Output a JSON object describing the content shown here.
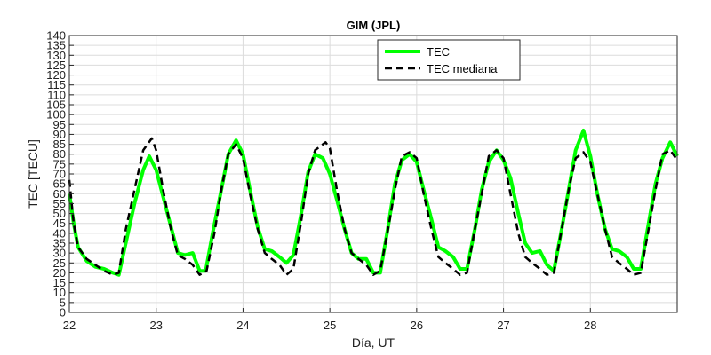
{
  "chart_data": {
    "type": "line",
    "title": "GIM (JPL)",
    "xlabel": "Día, UT",
    "ylabel": "TEC [TECU]",
    "xlim": [
      22,
      29
    ],
    "ylim": [
      0,
      140
    ],
    "xticks": [
      22,
      23,
      24,
      25,
      26,
      27,
      28
    ],
    "yticks": [
      0,
      5,
      10,
      15,
      20,
      25,
      30,
      35,
      40,
      45,
      50,
      55,
      60,
      65,
      70,
      75,
      80,
      85,
      90,
      95,
      100,
      105,
      110,
      115,
      120,
      125,
      130,
      135,
      140
    ],
    "grid": true,
    "legend_position": "top-right",
    "series": [
      {
        "name": "TEC",
        "color": "#00ff00",
        "style": "solid",
        "x": [
          22.0,
          22.05,
          22.1,
          22.2,
          22.3,
          22.4,
          22.5,
          22.57,
          22.65,
          22.75,
          22.85,
          22.92,
          23.0,
          23.1,
          23.25,
          23.33,
          23.42,
          23.5,
          23.57,
          23.65,
          23.75,
          23.83,
          23.92,
          24.0,
          24.08,
          24.17,
          24.25,
          24.33,
          24.42,
          24.5,
          24.58,
          24.67,
          24.75,
          24.83,
          24.92,
          25.0,
          25.08,
          25.17,
          25.25,
          25.33,
          25.42,
          25.5,
          25.58,
          25.67,
          25.75,
          25.83,
          25.92,
          26.0,
          26.08,
          26.17,
          26.25,
          26.33,
          26.42,
          26.5,
          26.58,
          26.67,
          26.75,
          26.83,
          26.92,
          27.0,
          27.08,
          27.17,
          27.25,
          27.33,
          27.42,
          27.5,
          27.58,
          27.67,
          27.75,
          27.83,
          27.92,
          28.0,
          28.08,
          28.17,
          28.25,
          28.33,
          28.42,
          28.5,
          28.58,
          28.67,
          28.75,
          28.83,
          28.92,
          29.0
        ],
        "y": [
          60,
          45,
          33,
          26,
          23,
          22,
          20,
          19,
          35,
          55,
          72,
          79,
          72,
          55,
          30,
          29,
          30,
          21,
          21,
          40,
          62,
          80,
          87,
          80,
          62,
          43,
          32,
          31,
          28,
          25,
          29,
          50,
          71,
          80,
          78,
          70,
          57,
          42,
          30,
          27,
          27,
          20,
          20,
          43,
          65,
          77,
          80,
          76,
          62,
          47,
          33,
          31,
          28,
          22,
          22,
          42,
          62,
          76,
          82,
          77,
          68,
          50,
          35,
          30,
          31,
          24,
          21,
          42,
          62,
          82,
          92,
          79,
          60,
          42,
          32,
          31,
          28,
          22,
          22,
          45,
          65,
          78,
          86,
          79
        ]
      },
      {
        "name": "TEC mediana",
        "color": "#000000",
        "style": "dashed",
        "x": [
          22.0,
          22.05,
          22.1,
          22.2,
          22.3,
          22.4,
          22.5,
          22.57,
          22.65,
          22.75,
          22.85,
          22.95,
          23.0,
          23.08,
          23.17,
          23.25,
          23.33,
          23.42,
          23.5,
          23.58,
          23.67,
          23.75,
          23.83,
          23.92,
          24.0,
          24.08,
          24.17,
          24.25,
          24.33,
          24.42,
          24.5,
          24.58,
          24.67,
          24.75,
          24.83,
          24.95,
          25.0,
          25.08,
          25.17,
          25.25,
          25.33,
          25.42,
          25.5,
          25.58,
          25.67,
          25.75,
          25.83,
          25.92,
          26.0,
          26.08,
          26.17,
          26.25,
          26.33,
          26.42,
          26.5,
          26.58,
          26.67,
          26.75,
          26.83,
          26.92,
          27.0,
          27.08,
          27.17,
          27.25,
          27.33,
          27.42,
          27.5,
          27.58,
          27.67,
          27.75,
          27.83,
          27.92,
          28.0,
          28.08,
          28.17,
          28.25,
          28.33,
          28.42,
          28.5,
          28.58,
          28.67,
          28.75,
          28.83,
          28.92,
          29.0
        ],
        "y": [
          67,
          45,
          33,
          27,
          24,
          21,
          19,
          20,
          42,
          62,
          82,
          88,
          82,
          62,
          42,
          29,
          27,
          24,
          19,
          21,
          40,
          62,
          80,
          85,
          78,
          60,
          42,
          30,
          27,
          24,
          19,
          22,
          46,
          70,
          82,
          86,
          83,
          62,
          42,
          30,
          27,
          24,
          19,
          21,
          42,
          62,
          79,
          81,
          78,
          60,
          42,
          28,
          25,
          22,
          19,
          20,
          42,
          60,
          79,
          82,
          78,
          60,
          40,
          28,
          25,
          22,
          19,
          20,
          42,
          62,
          78,
          81,
          76,
          60,
          42,
          28,
          25,
          22,
          19,
          20,
          42,
          62,
          80,
          82,
          77
        ]
      }
    ]
  }
}
